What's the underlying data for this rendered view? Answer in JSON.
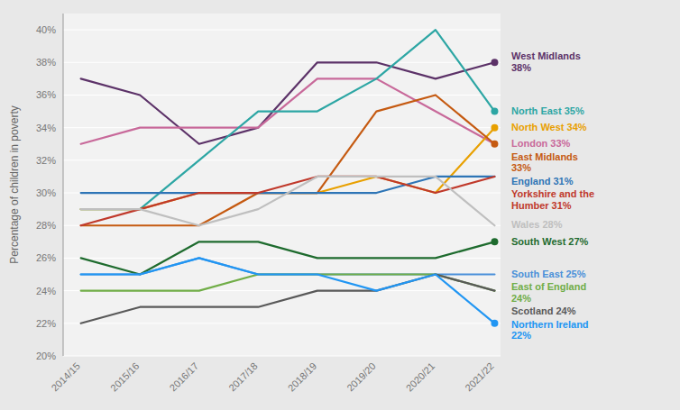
{
  "chart_data": {
    "type": "line",
    "y_label": "Percentage of children in poverty",
    "categories": [
      "2014/15",
      "2015/16",
      "2016/17",
      "2017/18",
      "2018/19",
      "2019/20",
      "2020/21",
      "2021/22"
    ],
    "series": [
      {
        "name": "West Midlands\n38%",
        "color": "#5c3268",
        "marker": "end-dot",
        "values": [
          37,
          36,
          33,
          34,
          38,
          38,
          37,
          38
        ]
      },
      {
        "name": "London 33%",
        "color": "#c8699a",
        "values": [
          33,
          34,
          34,
          34,
          37,
          37,
          35,
          33
        ]
      },
      {
        "name": "North East 35%",
        "color": "#2da6a4",
        "marker": "end-dot",
        "values": [
          29,
          29,
          32,
          35,
          35,
          37,
          40,
          35
        ]
      },
      {
        "name": "North West 34%",
        "color": "#e8a000",
        "marker": "end-dot",
        "values": [
          29,
          29,
          30,
          30,
          30,
          31,
          30,
          34
        ]
      },
      {
        "name": "East Midlands\n33%",
        "color": "#c55a11",
        "marker": "end-dot",
        "values": [
          28,
          28,
          28,
          30,
          30,
          35,
          36,
          33
        ]
      },
      {
        "name": "England 31%",
        "color": "#2e75b6",
        "values": [
          30,
          30,
          30,
          30,
          30,
          30,
          31,
          31
        ]
      },
      {
        "name": "Yorkshire and the\nHumber 31%",
        "color": "#c0392b",
        "values": [
          28,
          29,
          30,
          30,
          31,
          31,
          30,
          31
        ]
      },
      {
        "name": "Wales 28%",
        "color": "#bfbfbf",
        "values": [
          29,
          29,
          28,
          29,
          31,
          31,
          31,
          28
        ]
      },
      {
        "name": "South West 27%",
        "color": "#1e6b2e",
        "marker": "end-dot",
        "values": [
          26,
          25,
          27,
          27,
          26,
          26,
          26,
          27
        ]
      },
      {
        "name": "South East 25%",
        "color": "#4a90d9",
        "values": [
          25,
          25,
          26,
          25,
          25,
          25,
          25,
          25
        ]
      },
      {
        "name": "East of England\n24%",
        "color": "#70ad47",
        "values": [
          24,
          24,
          24,
          25,
          25,
          25,
          25,
          24
        ]
      },
      {
        "name": "Scotland 24%",
        "color": "#595959",
        "values": [
          22,
          23,
          23,
          23,
          24,
          24,
          25,
          24
        ]
      },
      {
        "name": "Northern Ireland\n22%",
        "color": "#2196f3",
        "marker": "end-dot",
        "values": [
          25,
          25,
          26,
          25,
          25,
          24,
          25,
          22
        ]
      }
    ],
    "ylim": [
      20,
      41
    ],
    "yticks": [
      {
        "value": 20,
        "label": "20%"
      },
      {
        "value": 22,
        "label": "22%"
      },
      {
        "value": 24,
        "label": "24%"
      },
      {
        "value": 26,
        "label": "26%"
      },
      {
        "value": 28,
        "label": "28%"
      },
      {
        "value": 30,
        "label": "30%"
      },
      {
        "value": 32,
        "label": "32%"
      },
      {
        "value": 34,
        "label": "34%"
      },
      {
        "value": 36,
        "label": "36%"
      },
      {
        "value": 38,
        "label": "38%"
      },
      {
        "value": 40,
        "label": "40%"
      }
    ],
    "grid": true
  }
}
